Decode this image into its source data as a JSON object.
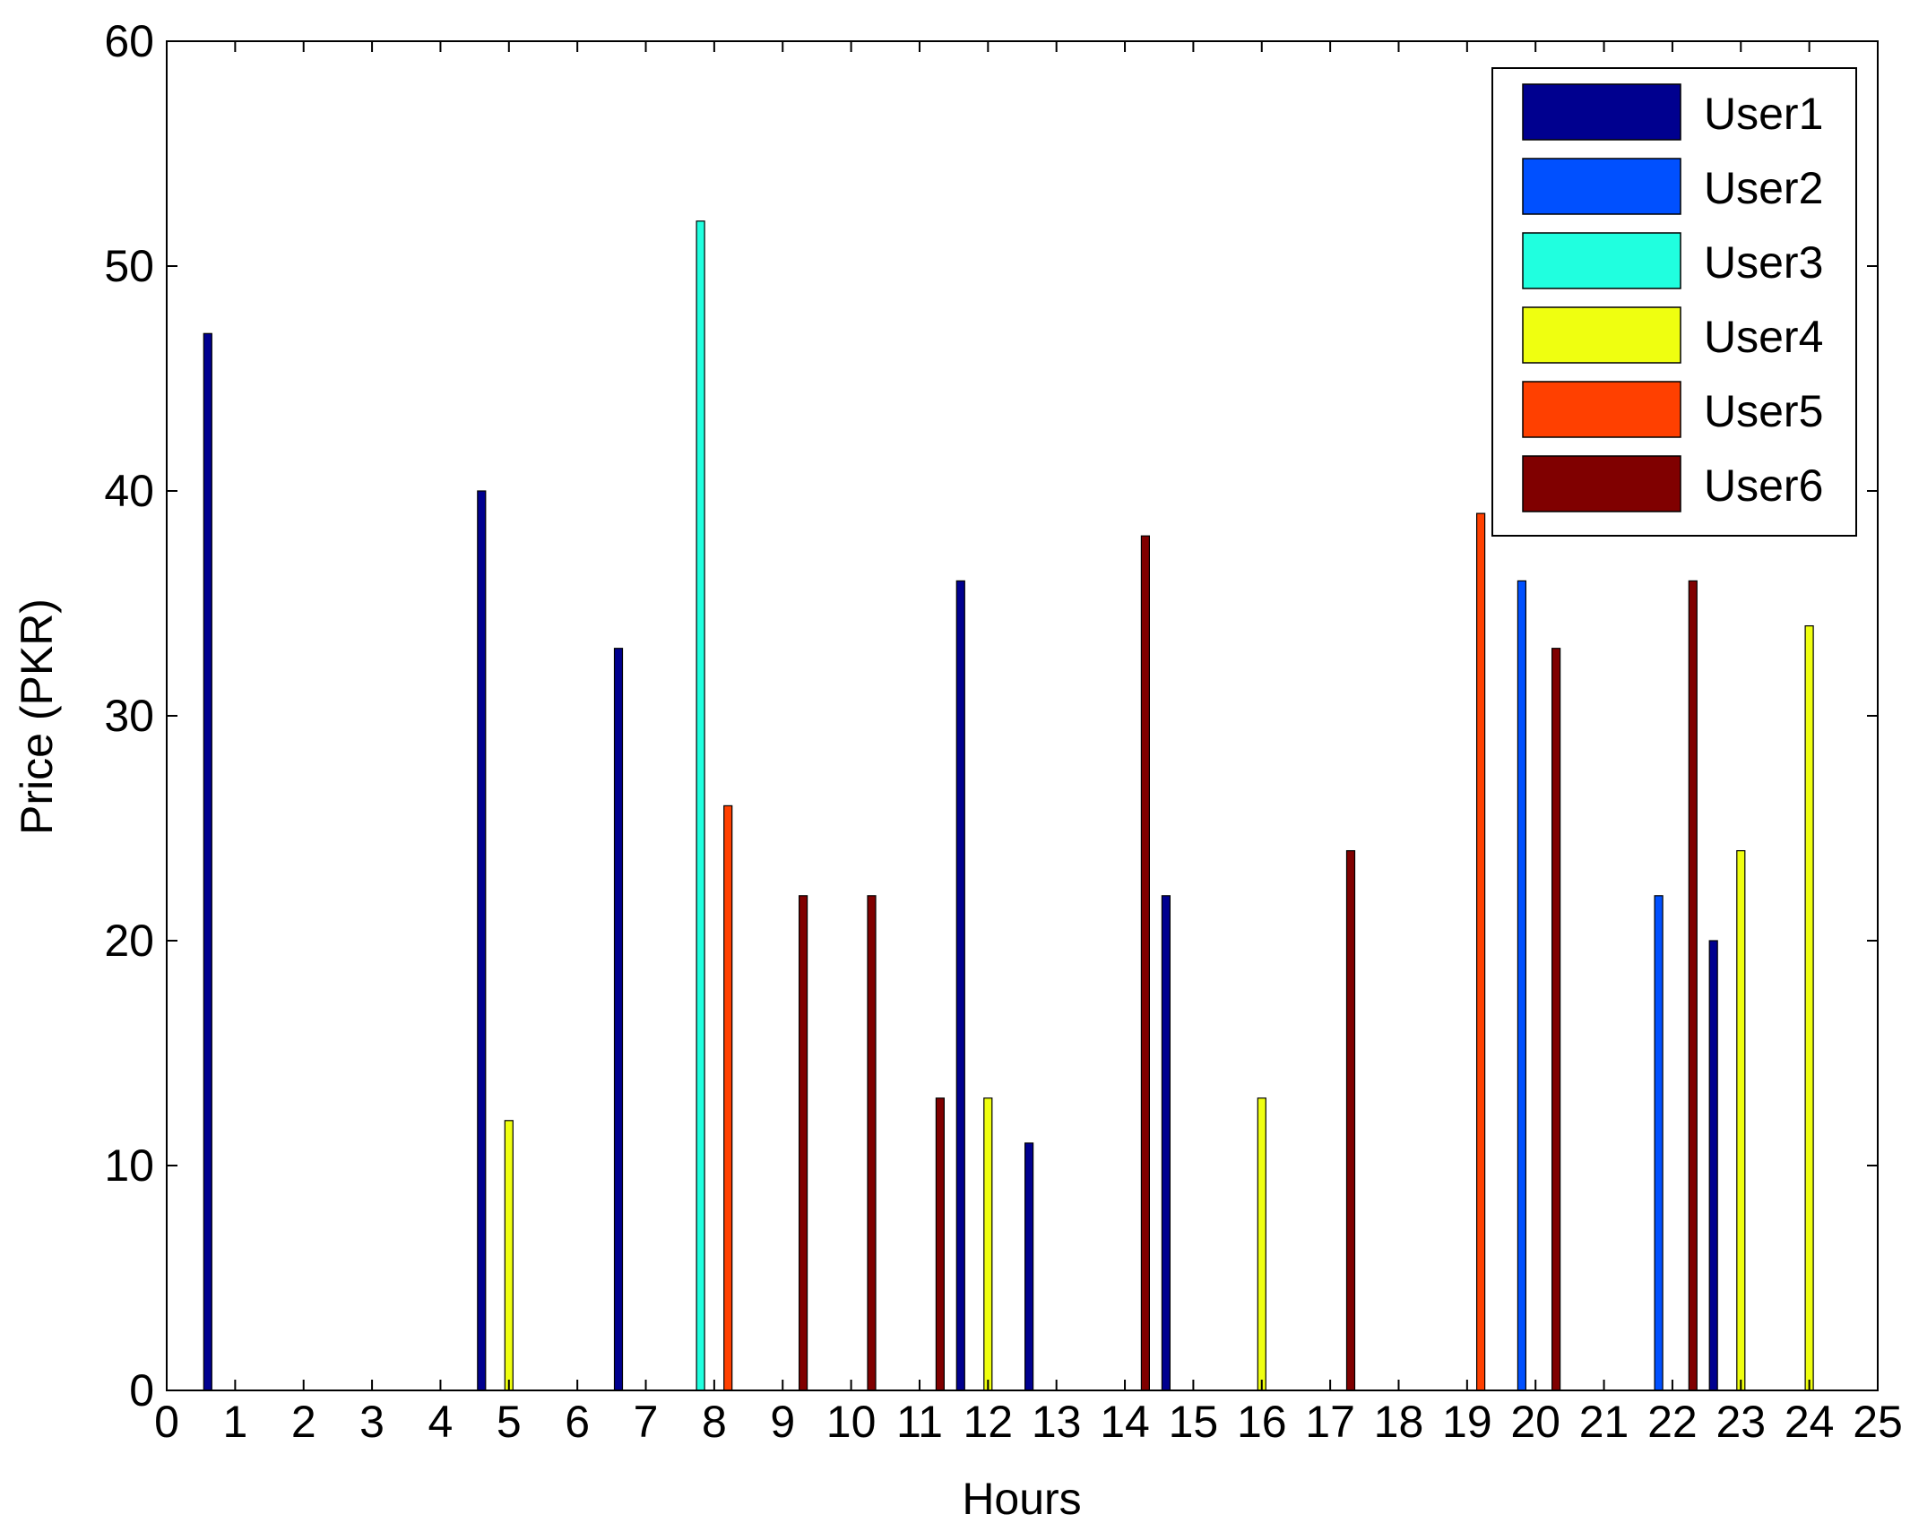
{
  "chart_data": {
    "type": "bar",
    "xlabel": "Hours",
    "ylabel": "Price (PKR)",
    "xlim": [
      0,
      25
    ],
    "ylim": [
      0,
      60
    ],
    "xticks": [
      0,
      1,
      2,
      3,
      4,
      5,
      6,
      7,
      8,
      9,
      10,
      11,
      12,
      13,
      14,
      15,
      16,
      17,
      18,
      19,
      20,
      21,
      22,
      23,
      24,
      25
    ],
    "yticks": [
      0,
      10,
      20,
      30,
      40,
      50,
      60
    ],
    "legend_position": "top-right",
    "grid": false,
    "series": [
      {
        "name": "User1",
        "color": "#00008F",
        "points": [
          {
            "x": 0.6,
            "y": 47
          },
          {
            "x": 4.6,
            "y": 40
          },
          {
            "x": 6.6,
            "y": 33
          },
          {
            "x": 11.6,
            "y": 36
          },
          {
            "x": 12.6,
            "y": 11
          },
          {
            "x": 14.6,
            "y": 22
          },
          {
            "x": 22.6,
            "y": 20
          }
        ]
      },
      {
        "name": "User2",
        "color": "#0050FF",
        "points": [
          {
            "x": 19.8,
            "y": 36
          },
          {
            "x": 21.8,
            "y": 22
          }
        ]
      },
      {
        "name": "User3",
        "color": "#20FFDF",
        "points": [
          {
            "x": 7.8,
            "y": 52
          }
        ]
      },
      {
        "name": "User4",
        "color": "#EFFF10",
        "points": [
          {
            "x": 5.0,
            "y": 12
          },
          {
            "x": 12.0,
            "y": 13
          },
          {
            "x": 16.0,
            "y": 13
          },
          {
            "x": 23.0,
            "y": 24
          },
          {
            "x": 24.0,
            "y": 34
          }
        ]
      },
      {
        "name": "User5",
        "color": "#FF4000",
        "points": [
          {
            "x": 8.2,
            "y": 26
          },
          {
            "x": 19.2,
            "y": 39
          }
        ]
      },
      {
        "name": "User6",
        "color": "#800000",
        "points": [
          {
            "x": 9.3,
            "y": 22
          },
          {
            "x": 10.3,
            "y": 22
          },
          {
            "x": 11.3,
            "y": 13
          },
          {
            "x": 14.3,
            "y": 38
          },
          {
            "x": 17.3,
            "y": 24
          },
          {
            "x": 20.3,
            "y": 33
          },
          {
            "x": 22.3,
            "y": 36
          }
        ]
      }
    ]
  }
}
